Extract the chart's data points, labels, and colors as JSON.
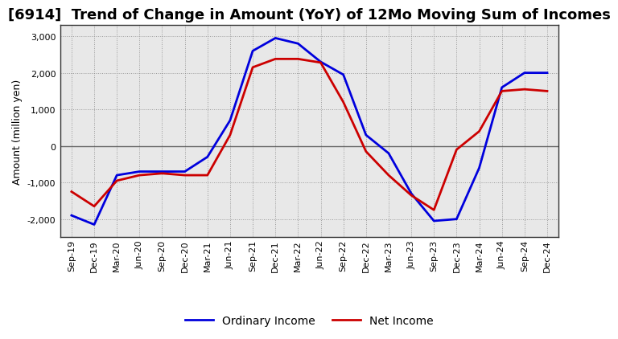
{
  "title": "[6914]  Trend of Change in Amount (YoY) of 12Mo Moving Sum of Incomes",
  "ylabel": "Amount (million yen)",
  "labels": [
    "Sep-19",
    "Dec-19",
    "Mar-20",
    "Jun-20",
    "Sep-20",
    "Dec-20",
    "Mar-21",
    "Jun-21",
    "Sep-21",
    "Dec-21",
    "Mar-22",
    "Jun-22",
    "Sep-22",
    "Dec-22",
    "Mar-23",
    "Jun-23",
    "Sep-23",
    "Dec-23",
    "Mar-24",
    "Jun-24",
    "Sep-24",
    "Dec-24"
  ],
  "ordinary_income": [
    -1900,
    -2150,
    -800,
    -700,
    -700,
    -700,
    -300,
    700,
    2600,
    2950,
    2800,
    2300,
    1950,
    300,
    -200,
    -1300,
    -2050,
    -2000,
    -600,
    1600,
    2000,
    2000
  ],
  "net_income": [
    -1250,
    -1650,
    -950,
    -800,
    -750,
    -800,
    -800,
    300,
    2150,
    2380,
    2380,
    2280,
    1200,
    -150,
    -800,
    -1350,
    -1750,
    -100,
    400,
    1500,
    1550,
    1500
  ],
  "ordinary_color": "#0000dd",
  "net_color": "#cc0000",
  "line_width": 2.0,
  "ylim": [
    -2500,
    3300
  ],
  "yticks": [
    -2000,
    -1000,
    0,
    1000,
    2000,
    3000
  ],
  "background_color": "#ffffff",
  "plot_bg_color": "#e8e8e8",
  "grid_color": "#999999",
  "zero_line_color": "#666666",
  "legend_ordinary": "Ordinary Income",
  "legend_net": "Net Income",
  "title_fontsize": 13,
  "ylabel_fontsize": 9,
  "tick_fontsize": 8,
  "legend_fontsize": 10
}
